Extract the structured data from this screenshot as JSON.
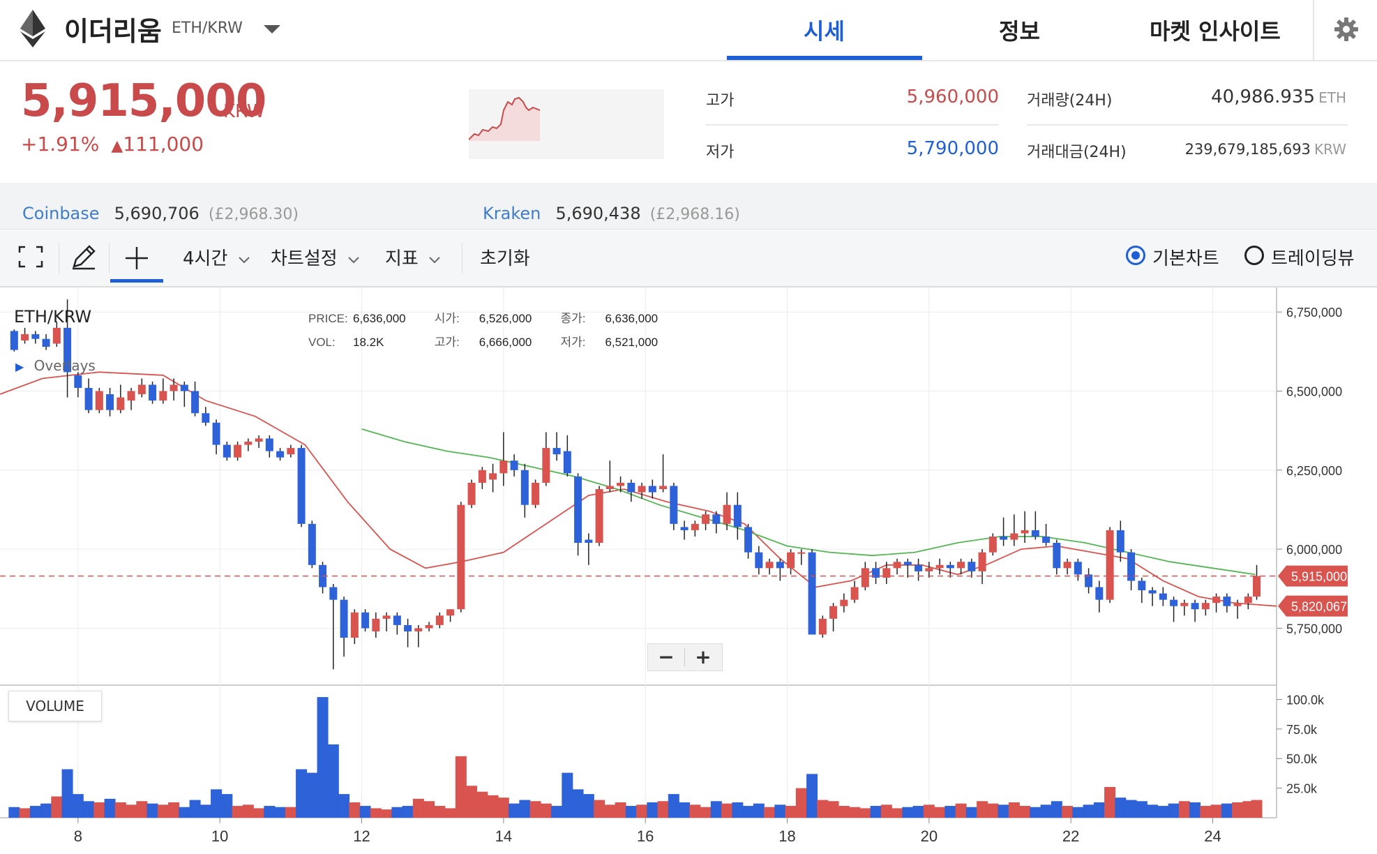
{
  "header": {
    "coin_name": "이더리움",
    "pair": "ETH/KRW",
    "tabs": [
      "시세",
      "정보",
      "마켓 인사이트"
    ],
    "active_tab": "시세",
    "icons": [
      "ethereum-logo-icon",
      "caret-down-icon",
      "gear-icon"
    ]
  },
  "summary": {
    "price": "5,915,000",
    "unit": "KRW",
    "change_pct": "+1.91%",
    "change_arrow": "▲",
    "change_abs": "111,000",
    "high_label": "고가",
    "high": "5,960,000",
    "low_label": "저가",
    "low": "5,790,000",
    "volume_label": "거래량(24H)",
    "volume": "40,986.935",
    "volume_unit": "ETH",
    "turnover_label": "거래대금(24H)",
    "turnover": "239,679,185,693",
    "turnover_unit": "KRW"
  },
  "exchanges": [
    {
      "name": "Coinbase",
      "price": "5,690,706",
      "gbp": "(£2,968.30)"
    },
    {
      "name": "Kraken",
      "price": "5,690,438",
      "gbp": "(£2,968.16)"
    }
  ],
  "toolbar": {
    "interval": "4시간",
    "chart_settings": "차트설정",
    "indicators": "지표",
    "reset": "초기화",
    "basic_chart": "기본차트",
    "trading_view": "트레이딩뷰",
    "selected_view": "기본차트",
    "icons": [
      "fullscreen-icon",
      "pencil-icon",
      "crosshair-icon",
      "chevron-down-icon"
    ]
  },
  "chart_legend": {
    "symbol": "ETH/KRW",
    "overlays": "Overlays",
    "price_label": "PRICE:",
    "price": "6,636,000",
    "open_label": "시가:",
    "open": "6,526,000",
    "close_label": "종가:",
    "close": "6,636,000",
    "vol_label": "VOL:",
    "vol": "18.2K",
    "high_label": "고가:",
    "high": "6,666,000",
    "low_label": "저가:",
    "low": "6,521,000"
  },
  "price_tags": {
    "current": "5,915,000",
    "ma": "5,820,067"
  },
  "volume_label": "VOLUME",
  "zoom": {
    "minus": "−",
    "plus": "+"
  },
  "colors": {
    "up": "#d9534f",
    "down": "#2d62d9",
    "ma_red": "#d9534f",
    "ma_green": "#52b652",
    "accent": "#1f5fd6"
  },
  "chart_data": {
    "type": "candlestick",
    "y_ticks": [
      "6,750,000",
      "6,500,000",
      "6,250,000",
      "6,000,000",
      "5,750,000"
    ],
    "y_tick_values": [
      6750000,
      6500000,
      6250000,
      6000000,
      5750000
    ],
    "ylim": [
      5570000,
      6810000
    ],
    "x_ticks": [
      "8",
      "10",
      "12",
      "14",
      "16",
      "18",
      "20",
      "22",
      "24"
    ],
    "x_tick_values": [
      8,
      10,
      12,
      14,
      16,
      18,
      20,
      22,
      24
    ],
    "xlim": [
      6.9,
      24.9
    ],
    "volume_ticks": [
      "100.0k",
      "75.0k",
      "50.0k",
      "25.0k"
    ],
    "volume_tick_values": [
      100000,
      75000,
      50000,
      25000
    ],
    "volume_max": 105000,
    "candles": [
      [
        7.1,
        6690000,
        6630000,
        6695000,
        6625000,
        9000
      ],
      [
        7.25,
        6660000,
        6680000,
        6700000,
        6650000,
        8000
      ],
      [
        7.4,
        6680000,
        6665000,
        6690000,
        6650000,
        10000
      ],
      [
        7.55,
        6665000,
        6640000,
        6680000,
        6630000,
        12000
      ],
      [
        7.7,
        6650000,
        6700000,
        6720000,
        6640000,
        18000
      ],
      [
        7.85,
        6700000,
        6560000,
        6790000,
        6480000,
        41000
      ],
      [
        8.0,
        6550000,
        6510000,
        6560000,
        6480000,
        20000
      ],
      [
        8.15,
        6510000,
        6440000,
        6540000,
        6430000,
        14000
      ],
      [
        8.3,
        6440000,
        6500000,
        6510000,
        6430000,
        13000
      ],
      [
        8.45,
        6490000,
        6440000,
        6510000,
        6420000,
        16000
      ],
      [
        8.6,
        6440000,
        6480000,
        6520000,
        6430000,
        13000
      ],
      [
        8.75,
        6470000,
        6500000,
        6510000,
        6440000,
        11000
      ],
      [
        8.9,
        6490000,
        6520000,
        6540000,
        6480000,
        14000
      ],
      [
        9.05,
        6520000,
        6470000,
        6530000,
        6460000,
        12000
      ],
      [
        9.2,
        6470000,
        6500000,
        6540000,
        6460000,
        11000
      ],
      [
        9.35,
        6500000,
        6520000,
        6540000,
        6470000,
        13000
      ],
      [
        9.5,
        6520000,
        6500000,
        6530000,
        6450000,
        9000
      ],
      [
        9.65,
        6500000,
        6430000,
        6530000,
        6420000,
        15000
      ],
      [
        9.8,
        6430000,
        6400000,
        6450000,
        6390000,
        11000
      ],
      [
        9.95,
        6400000,
        6330000,
        6410000,
        6300000,
        24000
      ],
      [
        10.1,
        6330000,
        6290000,
        6340000,
        6280000,
        20000
      ],
      [
        10.25,
        6290000,
        6330000,
        6340000,
        6280000,
        10000
      ],
      [
        10.4,
        6330000,
        6340000,
        6350000,
        6310000,
        11000
      ],
      [
        10.55,
        6340000,
        6350000,
        6360000,
        6320000,
        8000
      ],
      [
        10.7,
        6350000,
        6310000,
        6360000,
        6290000,
        10000
      ],
      [
        10.85,
        6310000,
        6290000,
        6320000,
        6280000,
        9000
      ],
      [
        11.0,
        6300000,
        6320000,
        6330000,
        6290000,
        9000
      ],
      [
        11.15,
        6320000,
        6080000,
        6330000,
        6070000,
        41000
      ],
      [
        11.3,
        6080000,
        5950000,
        6090000,
        5940000,
        38000
      ],
      [
        11.45,
        5950000,
        5880000,
        5960000,
        5860000,
        102000
      ],
      [
        11.6,
        5880000,
        5840000,
        5890000,
        5620000,
        62000
      ],
      [
        11.75,
        5840000,
        5720000,
        5850000,
        5660000,
        20000
      ],
      [
        11.9,
        5720000,
        5800000,
        5810000,
        5700000,
        13000
      ],
      [
        12.05,
        5800000,
        5750000,
        5810000,
        5740000,
        10000
      ],
      [
        12.2,
        5740000,
        5780000,
        5800000,
        5720000,
        8000
      ],
      [
        12.35,
        5780000,
        5790000,
        5800000,
        5740000,
        7000
      ],
      [
        12.5,
        5790000,
        5760000,
        5800000,
        5730000,
        9000
      ],
      [
        12.65,
        5760000,
        5740000,
        5780000,
        5690000,
        10000
      ],
      [
        12.8,
        5740000,
        5750000,
        5760000,
        5690000,
        16000
      ],
      [
        12.95,
        5750000,
        5760000,
        5770000,
        5740000,
        14000
      ],
      [
        13.1,
        5760000,
        5790000,
        5800000,
        5750000,
        10000
      ],
      [
        13.25,
        5790000,
        5810000,
        5810000,
        5770000,
        8000
      ],
      [
        13.4,
        5810000,
        6140000,
        6150000,
        5800000,
        52000
      ],
      [
        13.55,
        6140000,
        6210000,
        6220000,
        6130000,
        27000
      ],
      [
        13.7,
        6210000,
        6250000,
        6260000,
        6190000,
        22000
      ],
      [
        13.85,
        6220000,
        6240000,
        6270000,
        6180000,
        19000
      ],
      [
        14.0,
        6240000,
        6280000,
        6370000,
        6200000,
        17000
      ],
      [
        14.15,
        6280000,
        6250000,
        6300000,
        6230000,
        12000
      ],
      [
        14.3,
        6250000,
        6140000,
        6270000,
        6100000,
        15000
      ],
      [
        14.45,
        6140000,
        6210000,
        6220000,
        6130000,
        14000
      ],
      [
        14.6,
        6210000,
        6320000,
        6370000,
        6200000,
        12000
      ],
      [
        14.75,
        6320000,
        6300000,
        6370000,
        6280000,
        10000
      ],
      [
        14.9,
        6310000,
        6240000,
        6360000,
        6230000,
        38000
      ],
      [
        15.05,
        6230000,
        6020000,
        6240000,
        5980000,
        24000
      ],
      [
        15.2,
        6030000,
        6020000,
        6050000,
        5950000,
        20000
      ],
      [
        15.35,
        6020000,
        6190000,
        6200000,
        6010000,
        15000
      ],
      [
        15.5,
        6190000,
        6200000,
        6280000,
        6180000,
        11000
      ],
      [
        15.65,
        6200000,
        6210000,
        6230000,
        6180000,
        13000
      ],
      [
        15.8,
        6210000,
        6180000,
        6220000,
        6150000,
        10000
      ],
      [
        15.95,
        6180000,
        6200000,
        6210000,
        6160000,
        11000
      ],
      [
        16.1,
        6200000,
        6180000,
        6220000,
        6160000,
        13000
      ],
      [
        16.25,
        6190000,
        6200000,
        6300000,
        6180000,
        14000
      ],
      [
        16.4,
        6200000,
        6080000,
        6210000,
        6060000,
        20000
      ],
      [
        16.55,
        6070000,
        6060000,
        6090000,
        6030000,
        13000
      ],
      [
        16.7,
        6060000,
        6080000,
        6090000,
        6040000,
        11000
      ],
      [
        16.85,
        6080000,
        6110000,
        6120000,
        6060000,
        9000
      ],
      [
        17.0,
        6110000,
        6080000,
        6120000,
        6050000,
        14000
      ],
      [
        17.15,
        6080000,
        6140000,
        6180000,
        6060000,
        12000
      ],
      [
        17.3,
        6140000,
        6070000,
        6180000,
        6030000,
        13000
      ],
      [
        17.45,
        6070000,
        5990000,
        6080000,
        5970000,
        10000
      ],
      [
        17.6,
        5990000,
        5940000,
        6010000,
        5920000,
        12000
      ],
      [
        17.75,
        5940000,
        5960000,
        5970000,
        5920000,
        9000
      ],
      [
        17.9,
        5960000,
        5940000,
        5970000,
        5900000,
        11000
      ],
      [
        18.05,
        5940000,
        5990000,
        6000000,
        5920000,
        10000
      ],
      [
        18.2,
        5990000,
        5990000,
        6000000,
        5950000,
        25000
      ],
      [
        18.35,
        5990000,
        5730000,
        6000000,
        5730000,
        37000
      ],
      [
        18.5,
        5730000,
        5780000,
        5790000,
        5720000,
        15000
      ],
      [
        18.65,
        5780000,
        5820000,
        5830000,
        5740000,
        14000
      ],
      [
        18.8,
        5820000,
        5840000,
        5860000,
        5800000,
        10000
      ],
      [
        18.95,
        5840000,
        5880000,
        5900000,
        5830000,
        9000
      ],
      [
        19.1,
        5880000,
        5940000,
        5960000,
        5870000,
        8000
      ],
      [
        19.25,
        5940000,
        5910000,
        5960000,
        5890000,
        10000
      ],
      [
        19.4,
        5910000,
        5940000,
        5960000,
        5890000,
        11000
      ],
      [
        19.55,
        5940000,
        5960000,
        5970000,
        5920000,
        8000
      ],
      [
        19.7,
        5960000,
        5950000,
        5970000,
        5910000,
        9000
      ],
      [
        19.85,
        5950000,
        5930000,
        5970000,
        5900000,
        10000
      ],
      [
        20.0,
        5930000,
        5940000,
        5960000,
        5910000,
        11000
      ],
      [
        20.15,
        5940000,
        5950000,
        5970000,
        5920000,
        9000
      ],
      [
        20.3,
        5950000,
        5940000,
        5960000,
        5910000,
        10000
      ],
      [
        20.45,
        5940000,
        5960000,
        5970000,
        5920000,
        12000
      ],
      [
        20.6,
        5960000,
        5930000,
        5970000,
        5910000,
        9000
      ],
      [
        20.75,
        5930000,
        5990000,
        6000000,
        5890000,
        14000
      ],
      [
        20.9,
        5990000,
        6040000,
        6050000,
        5980000,
        12000
      ],
      [
        21.05,
        6040000,
        6030000,
        6100000,
        6010000,
        11000
      ],
      [
        21.2,
        6030000,
        6050000,
        6110000,
        6010000,
        13000
      ],
      [
        21.35,
        6050000,
        6060000,
        6120000,
        6020000,
        10000
      ],
      [
        21.5,
        6060000,
        6040000,
        6120000,
        6030000,
        9000
      ],
      [
        21.65,
        6040000,
        6020000,
        6080000,
        6010000,
        11000
      ],
      [
        21.8,
        6020000,
        5940000,
        6030000,
        5920000,
        14000
      ],
      [
        21.95,
        5940000,
        5960000,
        5970000,
        5920000,
        10000
      ],
      [
        22.1,
        5960000,
        5920000,
        5970000,
        5900000,
        9000
      ],
      [
        22.25,
        5920000,
        5880000,
        5940000,
        5860000,
        11000
      ],
      [
        22.4,
        5880000,
        5840000,
        5900000,
        5800000,
        13000
      ],
      [
        22.55,
        5840000,
        6060000,
        6070000,
        5830000,
        26000
      ],
      [
        22.7,
        6060000,
        5990000,
        6090000,
        5960000,
        17000
      ],
      [
        22.85,
        5990000,
        5900000,
        6000000,
        5870000,
        15000
      ],
      [
        23.0,
        5900000,
        5870000,
        5910000,
        5830000,
        14000
      ],
      [
        23.15,
        5870000,
        5860000,
        5880000,
        5820000,
        11000
      ],
      [
        23.3,
        5860000,
        5840000,
        5880000,
        5820000,
        10000
      ],
      [
        23.45,
        5840000,
        5820000,
        5850000,
        5770000,
        12000
      ],
      [
        23.6,
        5820000,
        5830000,
        5840000,
        5790000,
        14000
      ],
      [
        23.75,
        5830000,
        5810000,
        5840000,
        5770000,
        13000
      ],
      [
        23.9,
        5810000,
        5830000,
        5840000,
        5790000,
        10000
      ],
      [
        24.05,
        5830000,
        5850000,
        5860000,
        5800000,
        11000
      ],
      [
        24.2,
        5850000,
        5820000,
        5860000,
        5800000,
        12000
      ],
      [
        24.35,
        5820000,
        5830000,
        5840000,
        5780000,
        13000
      ],
      [
        24.5,
        5830000,
        5850000,
        5860000,
        5810000,
        14000
      ],
      [
        24.62,
        5850000,
        5915000,
        5950000,
        5840000,
        15000
      ]
    ],
    "ma_red": [
      [
        6.9,
        6490000
      ],
      [
        7.5,
        6540000
      ],
      [
        8.3,
        6560000
      ],
      [
        9.2,
        6550000
      ],
      [
        9.8,
        6470000
      ],
      [
        10.5,
        6420000
      ],
      [
        11.2,
        6330000
      ],
      [
        11.8,
        6150000
      ],
      [
        12.4,
        6000000
      ],
      [
        12.9,
        5940000
      ],
      [
        13.4,
        5960000
      ],
      [
        14.0,
        5990000
      ],
      [
        14.6,
        6080000
      ],
      [
        15.2,
        6170000
      ],
      [
        15.7,
        6190000
      ],
      [
        16.3,
        6150000
      ],
      [
        16.9,
        6120000
      ],
      [
        17.4,
        6080000
      ],
      [
        17.9,
        5970000
      ],
      [
        18.4,
        5880000
      ],
      [
        18.9,
        5900000
      ],
      [
        19.4,
        5950000
      ],
      [
        19.9,
        5950000
      ],
      [
        20.4,
        5920000
      ],
      [
        20.8,
        5950000
      ],
      [
        21.3,
        6000000
      ],
      [
        21.8,
        6010000
      ],
      [
        22.3,
        5990000
      ],
      [
        22.8,
        5970000
      ],
      [
        23.3,
        5900000
      ],
      [
        23.8,
        5850000
      ],
      [
        24.3,
        5830000
      ],
      [
        24.9,
        5820000
      ]
    ],
    "ma_green": [
      [
        12.0,
        6380000
      ],
      [
        12.6,
        6340000
      ],
      [
        13.2,
        6310000
      ],
      [
        13.8,
        6290000
      ],
      [
        14.4,
        6260000
      ],
      [
        15.0,
        6230000
      ],
      [
        15.6,
        6190000
      ],
      [
        16.2,
        6140000
      ],
      [
        16.8,
        6100000
      ],
      [
        17.4,
        6060000
      ],
      [
        18.0,
        6010000
      ],
      [
        18.6,
        5990000
      ],
      [
        19.2,
        5980000
      ],
      [
        19.8,
        5990000
      ],
      [
        20.4,
        6020000
      ],
      [
        21.0,
        6040000
      ],
      [
        21.6,
        6040000
      ],
      [
        22.2,
        6020000
      ],
      [
        22.8,
        5990000
      ],
      [
        23.4,
        5960000
      ],
      [
        24.0,
        5940000
      ],
      [
        24.6,
        5920000
      ]
    ],
    "current_price": 5915000,
    "ma_price": 5820067
  }
}
